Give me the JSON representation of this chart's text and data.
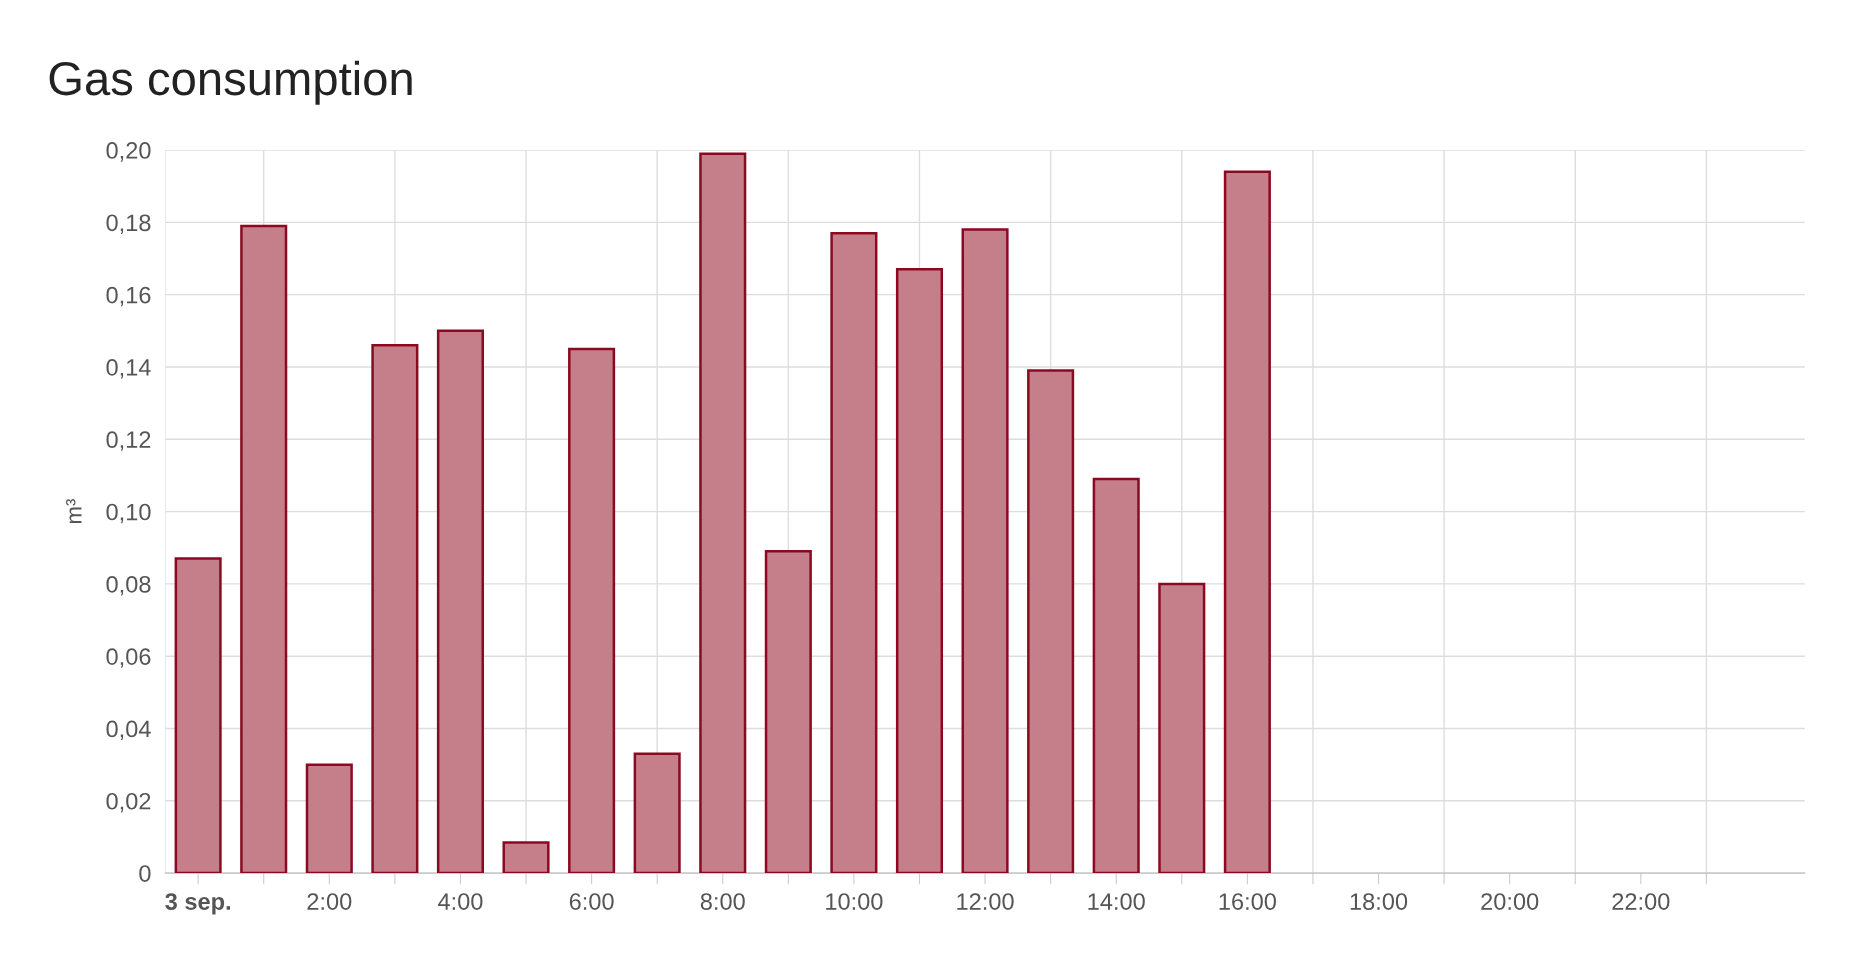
{
  "chart_data": {
    "type": "bar",
    "title": "Gas consumption",
    "ylabel": "m³",
    "x": [
      0,
      1,
      2,
      3,
      4,
      5,
      6,
      7,
      8,
      9,
      10,
      11,
      12,
      13,
      14,
      15,
      16
    ],
    "values": [
      0.087,
      0.179,
      0.03,
      0.146,
      0.15,
      0.0085,
      0.145,
      0.033,
      0.199,
      0.089,
      0.177,
      0.167,
      0.178,
      0.139,
      0.109,
      0.08,
      0.194
    ],
    "color": "#c57f8b",
    "xlim": [
      -0.5,
      24.5
    ],
    "xticks": [
      {
        "value": 0,
        "label": "3 sep."
      },
      {
        "value": 1,
        "label": null
      },
      {
        "value": 2,
        "label": "2:00"
      },
      {
        "value": 3,
        "label": null
      },
      {
        "value": 4,
        "label": "4:00"
      },
      {
        "value": 5,
        "label": null
      },
      {
        "value": 6,
        "label": "6:00"
      },
      {
        "value": 7,
        "label": null
      },
      {
        "value": 8,
        "label": "8:00"
      },
      {
        "value": 9,
        "label": null
      },
      {
        "value": 10,
        "label": "10:00"
      },
      {
        "value": 11,
        "label": null
      },
      {
        "value": 12,
        "label": "12:00"
      },
      {
        "value": 13,
        "label": null
      },
      {
        "value": 14,
        "label": "14:00"
      },
      {
        "value": 15,
        "label": null
      },
      {
        "value": 16,
        "label": "16:00"
      },
      {
        "value": 17,
        "label": null
      },
      {
        "value": 18,
        "label": "18:00"
      },
      {
        "value": 19,
        "label": null
      },
      {
        "value": 20,
        "label": "20:00"
      },
      {
        "value": 21,
        "label": null
      },
      {
        "value": 22,
        "label": "22:00"
      },
      {
        "value": 23,
        "label": null
      }
    ],
    "ylim": [
      0,
      0.2
    ],
    "yticks": [
      {
        "value": 0,
        "label": "0"
      },
      {
        "value": 0.02,
        "label": "0,02"
      },
      {
        "value": 0.04,
        "label": "0,04"
      },
      {
        "value": 0.06,
        "label": "0,06"
      },
      {
        "value": 0.08,
        "label": "0,08"
      },
      {
        "value": 0.1,
        "label": "0,10"
      },
      {
        "value": 0.12,
        "label": "0,12"
      },
      {
        "value": 0.14,
        "label": "0,14"
      },
      {
        "value": 0.16,
        "label": "0,16"
      },
      {
        "value": 0.18,
        "label": "0,18"
      },
      {
        "value": 0.2,
        "label": "0,20"
      }
    ],
    "grid": true,
    "legend": false
  }
}
